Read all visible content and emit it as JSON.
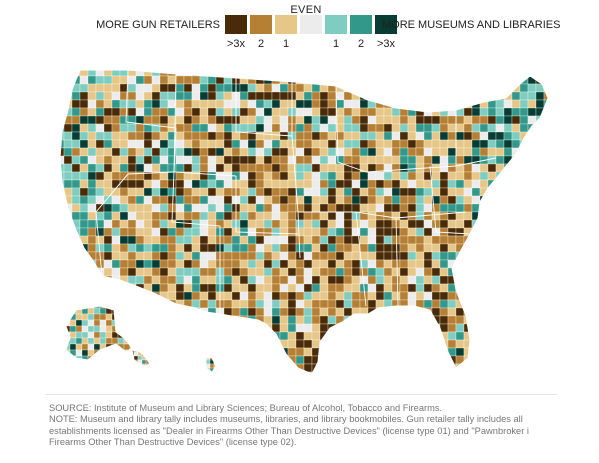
{
  "legend": {
    "center_label": "EVEN",
    "left_label": "MORE GUN RETAILERS",
    "right_label": "MORE MUSEUMS AND LIBRARIES",
    "ticks": [
      ">3x",
      "2",
      "1",
      "1",
      "2",
      ">3x"
    ],
    "colors": [
      "#4a2b08",
      "#b57f34",
      "#e6c787",
      "#ececec",
      "#7ecdc0",
      "#32998a",
      "#073d33"
    ]
  },
  "map": {
    "boundary_color": "#ffffff",
    "default_fill": "#e0bf79"
  },
  "notes": {
    "line1": "SOURCE: Institute of Museum and Library Sciences; Bureau of Alcohol, Tobacco and Firearms.",
    "line2": "NOTE: Museum and library tally includes museums, libraries, and library bookmobiles. Gun retailer tally includes all",
    "line3": "establishments licensed as \"Dealer in Firearms Other Than Destructive Devices\" (license type 01) and \"Pawnbroker i",
    "line4": "Firearms Other Than Destructive Devices\" (license type 02)."
  }
}
